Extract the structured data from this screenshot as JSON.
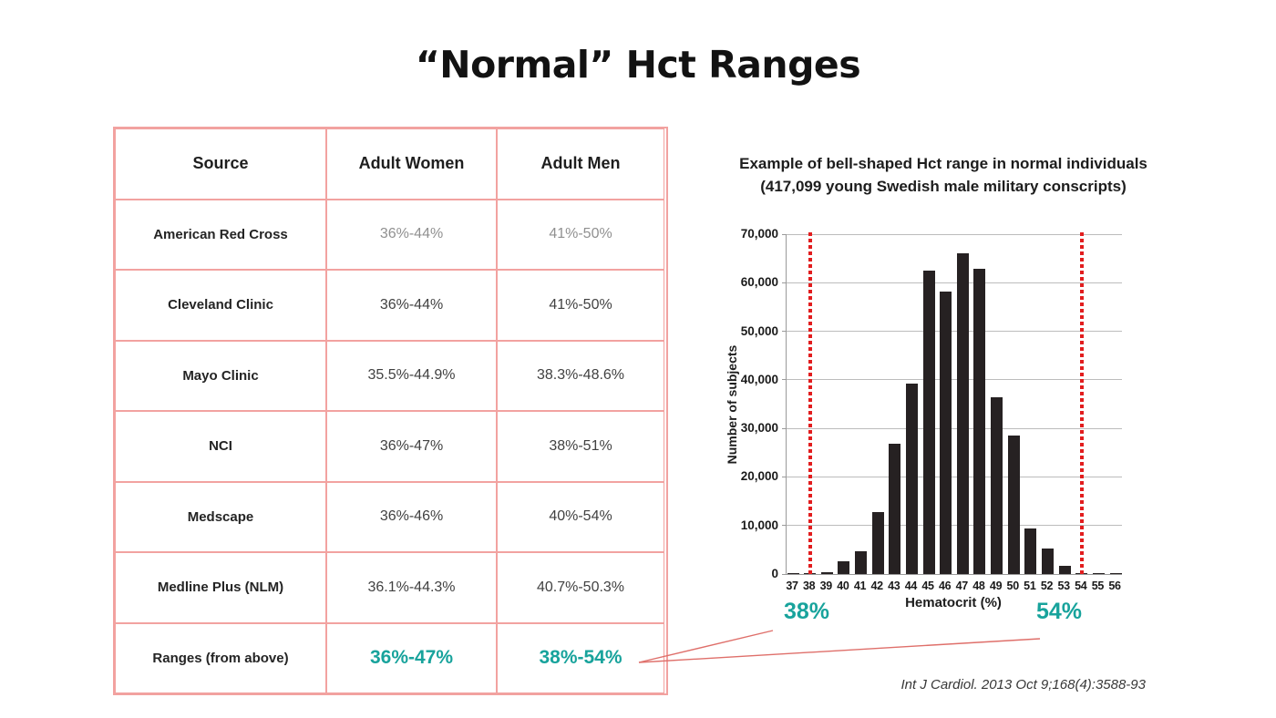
{
  "slide_title": "“Normal” Hct Ranges",
  "colors": {
    "table_border": "#f2a2a0",
    "accent_teal": "#18a39c",
    "reference_line_red": "#e21d1e",
    "connector_red": "#df6f6a",
    "bar_color": "#262122",
    "muted_value_gray": "#909090"
  },
  "table": {
    "headers": [
      "Source",
      "Adult Women",
      "Adult Men"
    ],
    "rows": [
      {
        "source": "American Red Cross",
        "women": "36%-44%",
        "men": "41%-50%",
        "style": "light"
      },
      {
        "source": "Cleveland Clinic",
        "women": "36%-44%",
        "men": "41%-50%",
        "style": "normal"
      },
      {
        "source": "Mayo Clinic",
        "women": "35.5%-44.9%",
        "men": "38.3%-48.6%",
        "style": "normal"
      },
      {
        "source": "NCI",
        "women": "36%-47%",
        "men": "38%-51%",
        "style": "normal"
      },
      {
        "source": "Medscape",
        "women": "36%-46%",
        "men": "40%-54%",
        "style": "normal"
      },
      {
        "source": "Medline Plus (NLM)",
        "women": "36.1%-44.3%",
        "men": "40.7%-50.3%",
        "style": "normal"
      },
      {
        "source": "Ranges (from above)",
        "women": "36%-47%",
        "men": "38%-54%",
        "style": "highlight"
      }
    ]
  },
  "chart_data": {
    "type": "bar",
    "title": "Example of bell-shaped Hct range in normal individuals",
    "subtitle": "(417,099 young Swedish male military conscripts)",
    "xlabel": "Hematocrit (%)",
    "ylabel": "Number of subjects",
    "categories": [
      "37",
      "38",
      "39",
      "40",
      "41",
      "42",
      "43",
      "44",
      "45",
      "46",
      "47",
      "48",
      "49",
      "50",
      "51",
      "52",
      "53",
      "54",
      "55",
      "56"
    ],
    "values": [
      100,
      200,
      400,
      2600,
      4700,
      12800,
      26800,
      39300,
      62400,
      58200,
      66000,
      62800,
      36500,
      28500,
      9300,
      5300,
      1600,
      250,
      150,
      150
    ],
    "ylim": [
      0,
      70000
    ],
    "ytick_step": 10000,
    "ytick_labels": [
      "0",
      "10,000",
      "20,000",
      "30,000",
      "40,000",
      "50,000",
      "60,000",
      "70,000"
    ],
    "grid": true,
    "legend": "none",
    "bar_color": "#262122",
    "reference_lines": [
      {
        "x": "38",
        "label": "38%",
        "color": "#e21d1e",
        "style": "dotted"
      },
      {
        "x": "54",
        "label": "54%",
        "color": "#e21d1e",
        "style": "dotted"
      }
    ]
  },
  "annotations": {
    "left_range_label": "38%",
    "right_range_label": "54%"
  },
  "citation": "Int J Cardiol. 2013 Oct 9;168(4):3588-93"
}
